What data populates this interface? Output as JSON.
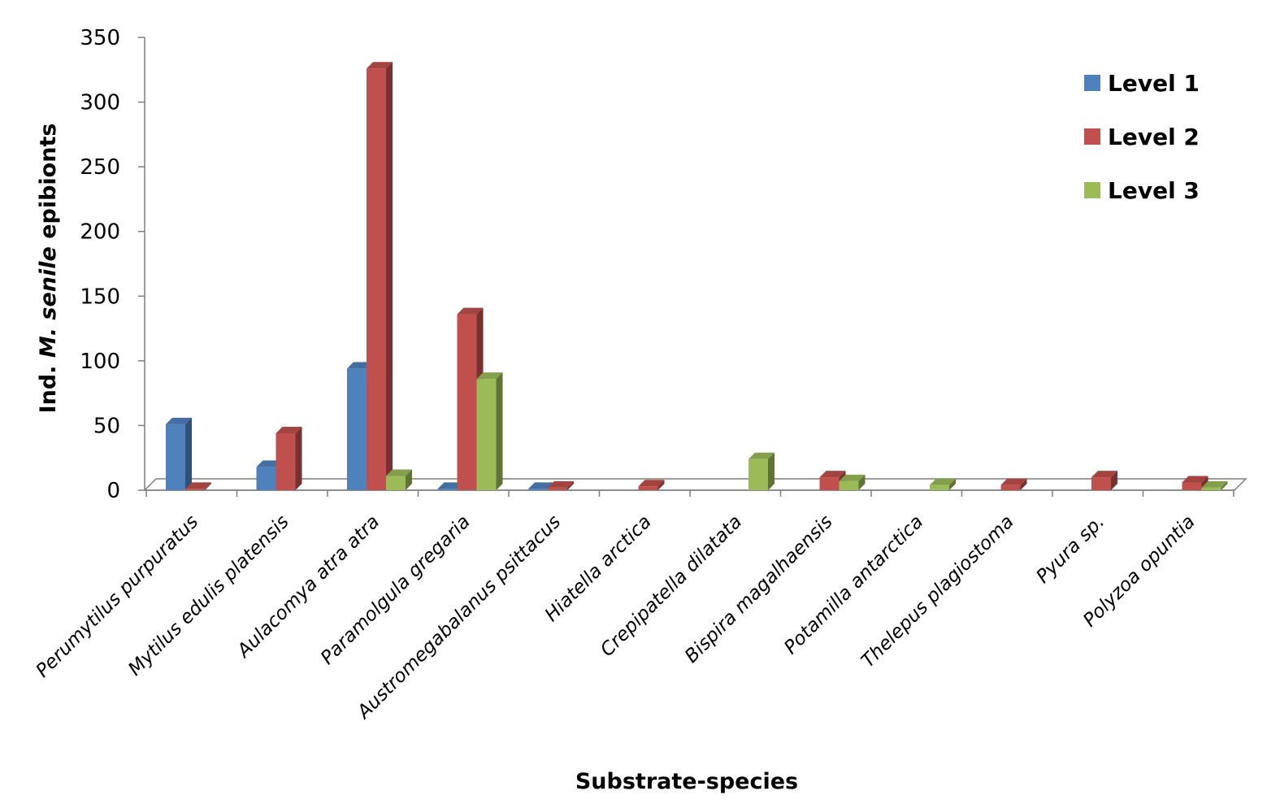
{
  "chart_data": {
    "type": "bar",
    "title": "",
    "xlabel": "Substrate-species",
    "ylabel_parts": [
      "Ind. ",
      "M. senile",
      " epibionts"
    ],
    "ylim": [
      0,
      350
    ],
    "yticks": [
      "0",
      "50",
      "100",
      "150",
      "200",
      "250",
      "300",
      "350"
    ],
    "categories": [
      "Perumytilus purpuratus",
      "Mytilus edulis platensis",
      "Aulacomya atra atra",
      "Paramolgula gregaria",
      "Austromegabalanus psittacus",
      "Hiatella arctica",
      "Crepipatella dilatata",
      "Bispira magalhaensis",
      "Potamilla antarctica",
      "Thelepus plagiostoma",
      "Pyura sp.",
      "Polyzoa opuntia"
    ],
    "series": [
      {
        "name": "Level 1",
        "color": "#4F81BD",
        "values": [
          51,
          18,
          94,
          1,
          1,
          0,
          0,
          0,
          0,
          0,
          0,
          0
        ]
      },
      {
        "name": "Level 2",
        "color": "#C0504D",
        "values": [
          1,
          44,
          326,
          136,
          2,
          3,
          0,
          10,
          0,
          4,
          10,
          6
        ]
      },
      {
        "name": "Level 3",
        "color": "#9BBB59",
        "values": [
          0,
          0,
          11,
          86,
          0,
          0,
          24,
          7,
          4,
          0,
          0,
          2
        ]
      }
    ],
    "legend_position": "top-right",
    "grid": false
  }
}
